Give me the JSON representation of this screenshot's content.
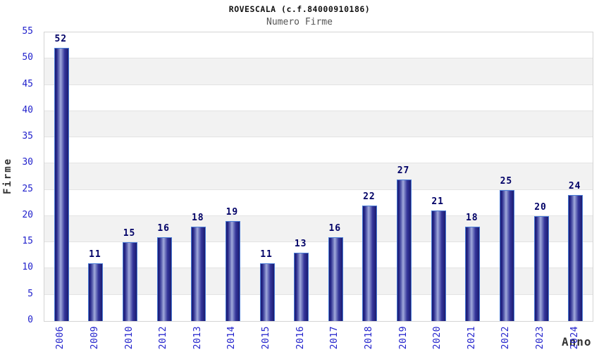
{
  "chart_data": {
    "type": "bar",
    "title": "ROVESCALA (c.f.84000910186)",
    "subtitle": "Numero Firme",
    "xlabel": "Anno",
    "ylabel": "Firme",
    "categories": [
      "2006",
      "2009",
      "2010",
      "2012",
      "2013",
      "2014",
      "2015",
      "2016",
      "2017",
      "2018",
      "2019",
      "2020",
      "2021",
      "2022",
      "2023",
      "2024"
    ],
    "values": [
      52,
      11,
      15,
      16,
      18,
      19,
      11,
      13,
      16,
      22,
      27,
      21,
      18,
      25,
      20,
      24
    ],
    "ylim": [
      0,
      55
    ],
    "ytick_step": 5,
    "yticks": [
      0,
      5,
      10,
      15,
      20,
      25,
      30,
      35,
      40,
      45,
      50,
      55
    ],
    "grid": true,
    "legend": "none",
    "colors": {
      "bar_dark": "#1b1c70",
      "bar_mid": "#34359a",
      "bar_light": "#a2aadc",
      "bar_border": "#4a7cd6",
      "tick_label_blue": "#2222cc",
      "value_label_navy": "#000066",
      "band_gray": "#f2f2f2",
      "grid_line": "#e3e3e3",
      "plot_border": "#d4d4d4",
      "axis_title_gray": "#333333"
    }
  }
}
